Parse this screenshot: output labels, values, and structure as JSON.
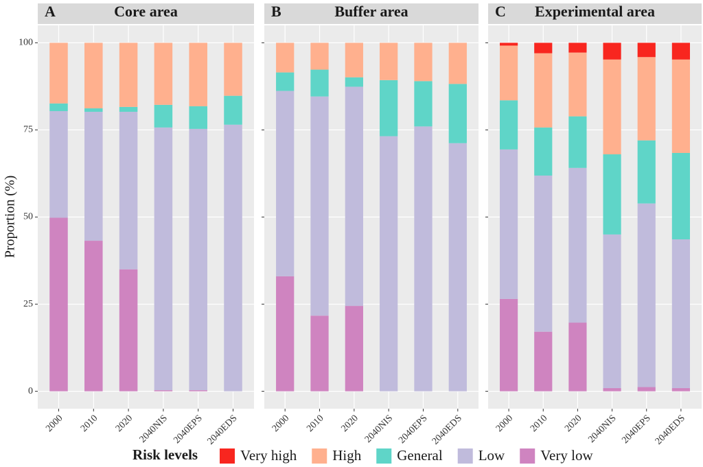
{
  "y_axis_label": "Proportion (%)",
  "legend": {
    "title": "Risk levels"
  },
  "chart_data": [
    {
      "type": "bar",
      "stacked": true,
      "panel": "A",
      "title": "Core area",
      "categories": [
        "2000",
        "2010",
        "2020",
        "2040NIS",
        "2040EPS",
        "2040EDS"
      ],
      "ylim": [
        -5,
        105
      ],
      "yticks": [
        0,
        25,
        50,
        75,
        100
      ],
      "grid": true,
      "series": [
        {
          "name": "Very high",
          "color": "#f8261f",
          "values": [
            0,
            0,
            0,
            0,
            0,
            0
          ]
        },
        {
          "name": "High",
          "color": "#ffb08e",
          "values": [
            17.4,
            18.8,
            18.4,
            17.8,
            18.2,
            15.2
          ]
        },
        {
          "name": "General",
          "color": "#5fd5c8",
          "values": [
            2.2,
            1.0,
            1.4,
            6.5,
            6.5,
            8.3
          ]
        },
        {
          "name": "Low",
          "color": "#c0bbdc",
          "values": [
            30.6,
            37.0,
            45.2,
            75.4,
            75.0,
            76.5
          ]
        },
        {
          "name": "Very low",
          "color": "#cf84c0",
          "values": [
            49.8,
            43.2,
            35.0,
            0.3,
            0.3,
            0
          ]
        }
      ]
    },
    {
      "type": "bar",
      "stacked": true,
      "panel": "B",
      "title": "Buffer area",
      "categories": [
        "2000",
        "2010",
        "2020",
        "2040NIS",
        "2040EPS",
        "2040EDS"
      ],
      "ylim": [
        -5,
        105
      ],
      "yticks": [
        0,
        25,
        50,
        75,
        100
      ],
      "grid": true,
      "series": [
        {
          "name": "Very high",
          "color": "#f8261f",
          "values": [
            0,
            0,
            0,
            0,
            0,
            0
          ]
        },
        {
          "name": "High",
          "color": "#ffb08e",
          "values": [
            8.5,
            7.7,
            9.9,
            10.7,
            11.0,
            11.8
          ]
        },
        {
          "name": "General",
          "color": "#5fd5c8",
          "values": [
            5.3,
            7.7,
            2.7,
            16.1,
            13.0,
            17.0
          ]
        },
        {
          "name": "Low",
          "color": "#c0bbdc",
          "values": [
            53.2,
            62.9,
            62.9,
            73.2,
            76.0,
            71.2
          ]
        },
        {
          "name": "Very low",
          "color": "#cf84c0",
          "values": [
            33.0,
            21.7,
            24.5,
            0,
            0,
            0
          ]
        }
      ]
    },
    {
      "type": "bar",
      "stacked": true,
      "panel": "C",
      "title": "Experimental area",
      "categories": [
        "2000",
        "2010",
        "2020",
        "2040NIS",
        "2040EPS",
        "2040EDS"
      ],
      "ylim": [
        -5,
        105
      ],
      "yticks": [
        0,
        25,
        50,
        75,
        100
      ],
      "grid": true,
      "series": [
        {
          "name": "Very high",
          "color": "#f8261f",
          "values": [
            0.8,
            3.0,
            2.8,
            4.8,
            4.1,
            4.8
          ]
        },
        {
          "name": "High",
          "color": "#ffb08e",
          "values": [
            15.7,
            21.3,
            18.3,
            27.2,
            23.9,
            26.8
          ]
        },
        {
          "name": "General",
          "color": "#5fd5c8",
          "values": [
            14.1,
            13.8,
            14.8,
            23.0,
            18.1,
            24.8
          ]
        },
        {
          "name": "Low",
          "color": "#c0bbdc",
          "values": [
            42.9,
            44.8,
            44.4,
            44.1,
            52.7,
            42.7
          ]
        },
        {
          "name": "Very low",
          "color": "#cf84c0",
          "values": [
            26.5,
            17.1,
            19.7,
            0.9,
            1.2,
            0.9
          ]
        }
      ]
    }
  ]
}
